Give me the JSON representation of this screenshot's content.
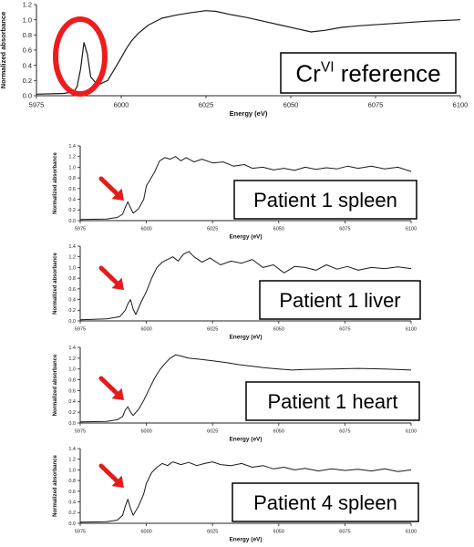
{
  "chart_data": [
    {
      "type": "line",
      "label": "Cr",
      "label_sup": "VI",
      "label_rest": " reference",
      "xlabel": "Energy (eV)",
      "ylabel": "Normalized absorbance",
      "xlim": [
        5975,
        6100
      ],
      "ylim": [
        0,
        1.2
      ],
      "xticks": [
        5975,
        6000,
        6025,
        6050,
        6075,
        6100
      ],
      "yticks": [
        "0.0",
        "0.2",
        "0.4",
        "0.6",
        "0.8",
        "1.0",
        "1.2"
      ],
      "highlight": "red-ellipse",
      "series": [
        {
          "x": [
            5975,
            5983,
            5986,
            5987,
            5988,
            5989,
            5990,
            5991,
            5993,
            5996,
            5998,
            6000,
            6001.5,
            6003,
            6005,
            6008,
            6012,
            6016,
            6020,
            6025,
            6028,
            6032,
            6037,
            6042,
            6047,
            6052,
            6056,
            6060,
            6065,
            6070,
            6080,
            6090,
            6100
          ],
          "y": [
            0.02,
            0.03,
            0.05,
            0.12,
            0.35,
            0.7,
            0.55,
            0.25,
            0.14,
            0.2,
            0.35,
            0.5,
            0.62,
            0.72,
            0.82,
            0.93,
            1.02,
            1.06,
            1.09,
            1.12,
            1.11,
            1.07,
            1.03,
            0.98,
            0.93,
            0.88,
            0.84,
            0.86,
            0.9,
            0.92,
            0.95,
            0.98,
            1.0
          ]
        }
      ]
    },
    {
      "type": "line",
      "label": "Patient 1 spleen",
      "xlabel": "Energy (eV)",
      "ylabel": "Normalized absorbance",
      "xlim": [
        5975,
        6100
      ],
      "ylim": [
        0,
        1.4
      ],
      "xticks": [
        5975,
        6000,
        6025,
        6050,
        6075,
        6100
      ],
      "yticks": [
        "0.0",
        "0.2",
        "0.4",
        "0.6",
        "0.8",
        "1.0",
        "1.2",
        "1.4"
      ],
      "highlight": "red-arrow",
      "series": [
        {
          "x": [
            5975,
            5985,
            5989,
            5991,
            5992,
            5993,
            5994,
            5995,
            5997,
            5999,
            6000,
            6003,
            6005,
            6007,
            6009,
            6011,
            6013,
            6015,
            6018,
            6021,
            6025,
            6029,
            6033,
            6037,
            6040,
            6044,
            6048,
            6052,
            6056,
            6060,
            6064,
            6068,
            6072,
            6076,
            6080,
            6085,
            6090,
            6095,
            6100
          ],
          "y": [
            0.02,
            0.03,
            0.06,
            0.12,
            0.25,
            0.35,
            0.24,
            0.14,
            0.22,
            0.4,
            0.65,
            0.9,
            1.12,
            1.18,
            1.15,
            1.2,
            1.12,
            1.18,
            1.1,
            1.15,
            1.08,
            1.1,
            1.02,
            1.05,
            0.98,
            1.0,
            0.95,
            0.98,
            0.94,
            1.0,
            0.96,
            0.99,
            0.97,
            1.02,
            0.98,
            1.02,
            0.97,
            1.0,
            0.92
          ]
        }
      ]
    },
    {
      "type": "line",
      "label": "Patient 1 liver",
      "xlabel": "Energy (eV)",
      "ylabel": "Normalized absorbance",
      "xlim": [
        5975,
        6100
      ],
      "ylim": [
        0,
        1.4
      ],
      "xticks": [
        5975,
        6000,
        6025,
        6050,
        6075,
        6100
      ],
      "yticks": [
        "0.0",
        "0.2",
        "0.4",
        "0.6",
        "0.8",
        "1.0",
        "1.2",
        "1.4"
      ],
      "highlight": "red-arrow",
      "series": [
        {
          "x": [
            5975,
            5985,
            5990,
            5992,
            5993,
            5994,
            5995,
            5996,
            5998,
            6000,
            6002,
            6004,
            6006,
            6008,
            6010,
            6012,
            6014,
            6016,
            6018,
            6021,
            6024,
            6028,
            6032,
            6036,
            6040,
            6044,
            6048,
            6052,
            6056,
            6060,
            6064,
            6068,
            6072,
            6076,
            6080,
            6085,
            6090,
            6095,
            6100
          ],
          "y": [
            0.02,
            0.04,
            0.08,
            0.2,
            0.32,
            0.4,
            0.22,
            0.12,
            0.35,
            0.55,
            0.8,
            1.0,
            1.1,
            1.15,
            1.2,
            1.12,
            1.25,
            1.3,
            1.2,
            1.1,
            1.18,
            1.05,
            1.12,
            1.08,
            1.15,
            1.0,
            1.05,
            0.9,
            1.02,
            1.0,
            0.95,
            1.05,
            0.97,
            1.02,
            0.95,
            1.0,
            0.98,
            1.01,
            0.98
          ]
        }
      ]
    },
    {
      "type": "line",
      "label": "Patient 1 heart",
      "xlabel": "Energy (eV)",
      "ylabel": "Normalized absorbance",
      "xlim": [
        5975,
        6100
      ],
      "ylim": [
        0,
        1.4
      ],
      "xticks": [
        5975,
        6000,
        6025,
        6050,
        6075,
        6100
      ],
      "yticks": [
        "0.0",
        "0.2",
        "0.4",
        "0.6",
        "0.8",
        "1.0",
        "1.2",
        "1.4"
      ],
      "highlight": "red-arrow",
      "series": [
        {
          "x": [
            5975,
            5985,
            5989,
            5991,
            5992,
            5993,
            5994,
            5995,
            5997,
            5999,
            6001,
            6003,
            6005,
            6007,
            6009,
            6011,
            6013,
            6016,
            6020,
            6025,
            6030,
            6035,
            6040,
            6045,
            6050,
            6055,
            6060,
            6070,
            6080,
            6090,
            6100
          ],
          "y": [
            0.02,
            0.03,
            0.06,
            0.12,
            0.24,
            0.3,
            0.2,
            0.14,
            0.25,
            0.42,
            0.62,
            0.82,
            0.98,
            1.1,
            1.2,
            1.26,
            1.24,
            1.2,
            1.18,
            1.15,
            1.12,
            1.08,
            1.05,
            1.02,
            1.0,
            0.98,
            0.99,
            1.0,
            1.01,
            1.0,
            0.98
          ]
        }
      ]
    },
    {
      "type": "line",
      "label": "Patient 4 spleen",
      "xlabel": "Energy (eV)",
      "ylabel": "Normalized absorbance",
      "xlim": [
        5975,
        6100
      ],
      "ylim": [
        0,
        1.4
      ],
      "xticks": [
        5975,
        6000,
        6025,
        6050,
        6075,
        6100
      ],
      "yticks": [
        "0.0",
        "0.2",
        "0.4",
        "0.6",
        "0.8",
        "1.0",
        "1.2",
        "1.4"
      ],
      "highlight": "red-arrow",
      "series": [
        {
          "x": [
            5975,
            5985,
            5989,
            5991,
            5992,
            5993,
            5994,
            5995,
            5997,
            5999,
            6000,
            6002,
            6004,
            6006,
            6008,
            6010,
            6013,
            6016,
            6019,
            6022,
            6025,
            6028,
            6032,
            6036,
            6040,
            6044,
            6048,
            6052,
            6056,
            6060,
            6065,
            6070,
            6075,
            6080,
            6085,
            6090,
            6095,
            6100
          ],
          "y": [
            0.02,
            0.03,
            0.06,
            0.15,
            0.32,
            0.45,
            0.28,
            0.15,
            0.32,
            0.55,
            0.75,
            0.95,
            1.05,
            1.12,
            1.08,
            1.15,
            1.1,
            1.14,
            1.08,
            1.12,
            1.15,
            1.1,
            1.08,
            1.12,
            1.05,
            1.08,
            1.02,
            1.05,
            1.0,
            1.03,
            0.98,
            1.02,
            0.99,
            1.01,
            0.98,
            1.02,
            0.97,
            1.0
          ]
        }
      ]
    }
  ]
}
